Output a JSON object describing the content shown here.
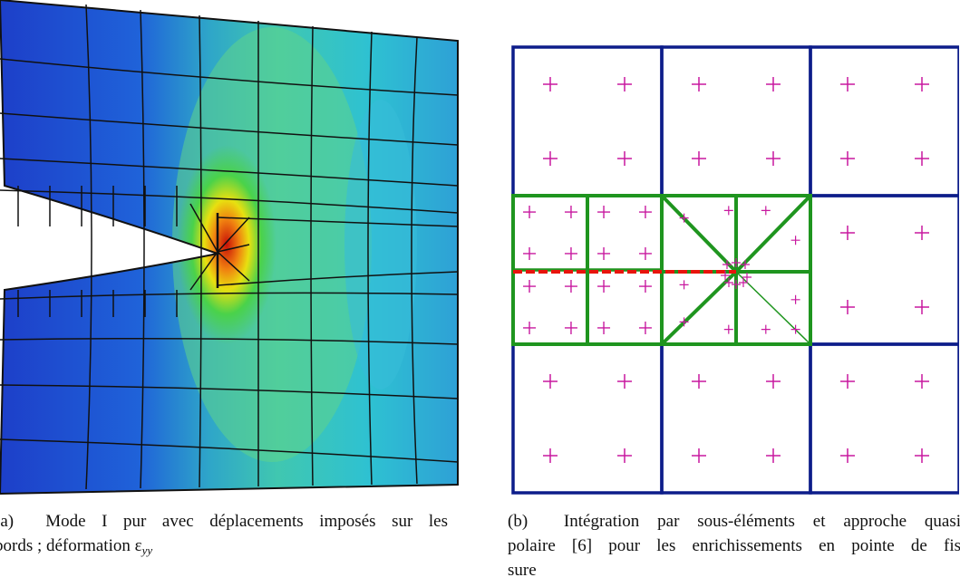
{
  "figure_a": {
    "caption_label": "(a)",
    "caption_line1": "Mode I pur avec déplacements imposés sur les",
    "caption_line2_prefix": "bords ; déformation ε",
    "caption_subscript": "yy",
    "colors": {
      "cold": "#1d3fc9",
      "cyan": "#33c6cf",
      "green": "#2fc85a",
      "red": "#d3120e",
      "mesh": "#111111"
    }
  },
  "figure_b": {
    "caption_label": "(b)",
    "caption_line1": "Intégration par sous-éléments et approche quasi",
    "caption_line2": "polaire [6] pour les enrichissements en pointe de fis",
    "caption_line3": "sure",
    "colors": {
      "grid": "#0d1d8a",
      "enriched": "#1f951f",
      "crack": "#e8140c",
      "gauss": "#c8199f"
    }
  }
}
